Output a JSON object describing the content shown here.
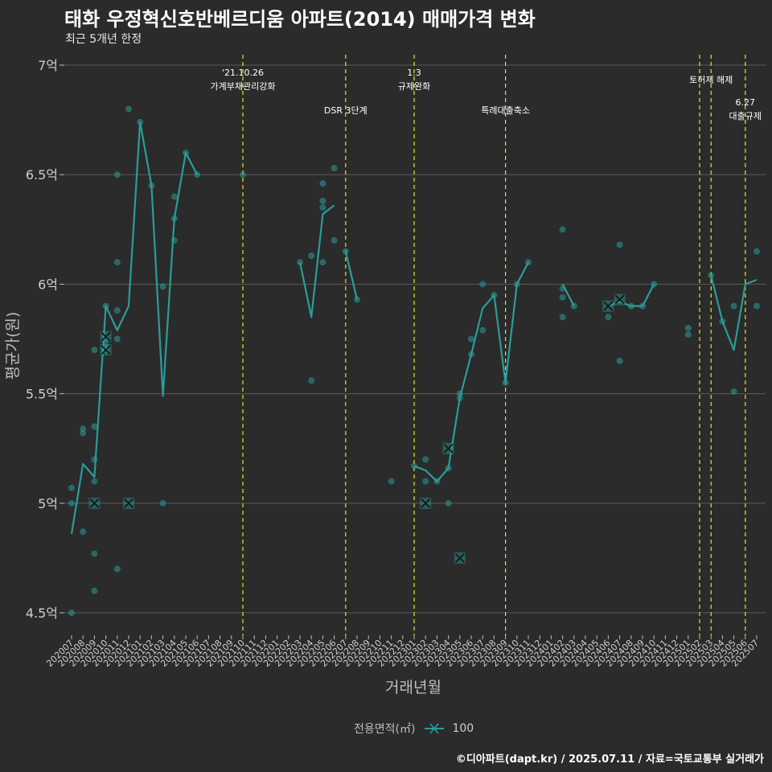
{
  "header": {
    "title": "태화 우정혁신호반베르디움 아파트(2014) 매매가격 변화",
    "subtitle": "최근 5개년 한정"
  },
  "caption": "©디아파트(dapt.kr) / 2025.07.11 / 자료=국토교통부 실거래가",
  "colors": {
    "background": "#2b2b2b",
    "series": "#2a9d9a",
    "event_line": "#e6e619",
    "grid": "#5a5a5a",
    "axis_text": "#bdbdbd"
  },
  "chart_data": {
    "type": "line",
    "title": "태화 우정혁신호반베르디움 아파트(2014) 매매가격 변화",
    "subtitle": "최근 5개년 한정",
    "xlabel": "거래년월",
    "ylabel": "평균가(원)",
    "ylim": [
      4.5,
      7.0
    ],
    "yticks": [
      4.5,
      5.0,
      5.5,
      6.0,
      6.5,
      7.0
    ],
    "ytick_labels": [
      "4.5억",
      "5억",
      "5.5억",
      "6억",
      "6.5억",
      "7억"
    ],
    "legend_title": "전용면적(㎡)",
    "legend_entries": [
      "100"
    ],
    "legend_position": "bottom",
    "categories": [
      "202007",
      "202008",
      "202009",
      "202010",
      "202011",
      "202012",
      "202101",
      "202102",
      "202103",
      "202104",
      "202105",
      "202106",
      "202107",
      "202108",
      "202109",
      "202110",
      "202111",
      "202112",
      "202201",
      "202202",
      "202203",
      "202204",
      "202205",
      "202206",
      "202207",
      "202208",
      "202209",
      "202210",
      "202211",
      "202212",
      "202301",
      "202302",
      "202303",
      "202304",
      "202305",
      "202306",
      "202307",
      "202308",
      "202309",
      "202310",
      "202311",
      "202312",
      "202401",
      "202402",
      "202403",
      "202404",
      "202405",
      "202406",
      "202407",
      "202408",
      "202409",
      "202410",
      "202411",
      "202412",
      "202501",
      "202502",
      "202503",
      "202504",
      "202505",
      "202506",
      "202507"
    ],
    "series": [
      {
        "name": "100",
        "line_segments": [
          [
            [
              0,
              4.86
            ],
            [
              1,
              5.18
            ],
            [
              2,
              5.12
            ],
            [
              3,
              5.9
            ],
            [
              4,
              5.79
            ],
            [
              5,
              5.9
            ],
            [
              6,
              6.74
            ],
            [
              7,
              6.45
            ],
            [
              8,
              5.49
            ],
            [
              9,
              6.3
            ],
            [
              10,
              6.6
            ],
            [
              11,
              6.5
            ]
          ],
          [
            [
              20,
              6.1
            ],
            [
              21,
              5.85
            ],
            [
              22,
              6.32
            ],
            [
              23,
              6.36
            ]
          ],
          [
            [
              24,
              6.15
            ],
            [
              25,
              5.93
            ]
          ],
          [
            [
              30,
              5.17
            ],
            [
              31,
              5.15
            ],
            [
              32,
              5.1
            ],
            [
              33,
              5.16
            ],
            [
              34,
              5.48
            ],
            [
              35,
              5.68
            ],
            [
              36,
              5.89
            ],
            [
              37,
              5.95
            ],
            [
              38,
              5.55
            ],
            [
              39,
              6.0
            ],
            [
              40,
              6.1
            ]
          ],
          [
            [
              43,
              6.0
            ],
            [
              44,
              5.9
            ]
          ],
          [
            [
              47,
              5.9
            ],
            [
              48,
              5.92
            ],
            [
              49,
              5.9
            ],
            [
              50,
              5.9
            ],
            [
              51,
              6.0
            ]
          ],
          [
            [
              56,
              6.04
            ],
            [
              57,
              5.83
            ],
            [
              58,
              5.7
            ],
            [
              59,
              6.0
            ],
            [
              60,
              6.02
            ]
          ]
        ],
        "points": [
          [
            0,
            5.07
          ],
          [
            0,
            5.0
          ],
          [
            0,
            4.5
          ],
          [
            1,
            5.34
          ],
          [
            1,
            5.32
          ],
          [
            1,
            4.87
          ],
          [
            2,
            5.7
          ],
          [
            2,
            5.35
          ],
          [
            2,
            5.2
          ],
          [
            2,
            5.1
          ],
          [
            2,
            4.77
          ],
          [
            2,
            4.6
          ],
          [
            3,
            5.9
          ],
          [
            3,
            5.75
          ],
          [
            3,
            5.72
          ],
          [
            3,
            5.7
          ],
          [
            4,
            6.5
          ],
          [
            4,
            6.1
          ],
          [
            4,
            5.88
          ],
          [
            4,
            5.75
          ],
          [
            4,
            4.7
          ],
          [
            5,
            6.8
          ],
          [
            6,
            6.74
          ],
          [
            7,
            6.45
          ],
          [
            8,
            5.99
          ],
          [
            8,
            5.0
          ],
          [
            9,
            6.4
          ],
          [
            9,
            6.3
          ],
          [
            9,
            6.2
          ],
          [
            10,
            6.6
          ],
          [
            11,
            6.5
          ],
          [
            15,
            6.5
          ],
          [
            20,
            6.1
          ],
          [
            21,
            6.13
          ],
          [
            21,
            5.56
          ],
          [
            22,
            6.46
          ],
          [
            22,
            6.38
          ],
          [
            22,
            6.35
          ],
          [
            22,
            6.1
          ],
          [
            23,
            6.53
          ],
          [
            23,
            6.2
          ],
          [
            24,
            6.15
          ],
          [
            25,
            5.93
          ],
          [
            28,
            5.1
          ],
          [
            30,
            5.17
          ],
          [
            31,
            5.2
          ],
          [
            31,
            5.1
          ],
          [
            32,
            5.1
          ],
          [
            33,
            5.16
          ],
          [
            33,
            5.0
          ],
          [
            34,
            5.5
          ],
          [
            34,
            5.48
          ],
          [
            35,
            5.75
          ],
          [
            35,
            5.68
          ],
          [
            36,
            6.0
          ],
          [
            36,
            5.79
          ],
          [
            37,
            5.95
          ],
          [
            38,
            5.55
          ],
          [
            39,
            6.0
          ],
          [
            40,
            6.1
          ],
          [
            43,
            6.25
          ],
          [
            43,
            5.98
          ],
          [
            43,
            5.94
          ],
          [
            43,
            5.85
          ],
          [
            44,
            5.9
          ],
          [
            47,
            5.85
          ],
          [
            48,
            6.18
          ],
          [
            48,
            5.65
          ],
          [
            49,
            5.9
          ],
          [
            50,
            5.9
          ],
          [
            51,
            6.0
          ],
          [
            54,
            5.8
          ],
          [
            54,
            5.77
          ],
          [
            56,
            6.04
          ],
          [
            57,
            5.83
          ],
          [
            58,
            5.9
          ],
          [
            58,
            5.51
          ],
          [
            60,
            6.15
          ],
          [
            60,
            5.9
          ]
        ],
        "x_markers": [
          [
            2,
            5.0
          ],
          [
            3,
            5.76
          ],
          [
            3,
            5.7
          ],
          [
            5,
            5.0
          ],
          [
            31,
            5.0
          ],
          [
            33,
            5.25
          ],
          [
            34,
            4.75
          ],
          [
            47,
            5.9
          ],
          [
            48,
            5.93
          ]
        ]
      }
    ],
    "events": [
      {
        "x": 15,
        "label": [
          "'21.10.26",
          "가계부채관리강화"
        ],
        "row": 1
      },
      {
        "x": 24,
        "label": [
          "DSR 3단계"
        ],
        "row": 3
      },
      {
        "x": 30,
        "label": [
          "1.3",
          "규제완화"
        ],
        "row": 1
      },
      {
        "x": 38,
        "label": [
          "특례대출축소"
        ],
        "row": 3
      },
      {
        "x": 55,
        "label": [],
        "row": 0
      },
      {
        "x": 56,
        "label": [
          "토허제 해제"
        ],
        "row": 2
      },
      {
        "x": 59,
        "label": [
          "6.27",
          "대출규제"
        ],
        "row": 4
      }
    ]
  }
}
